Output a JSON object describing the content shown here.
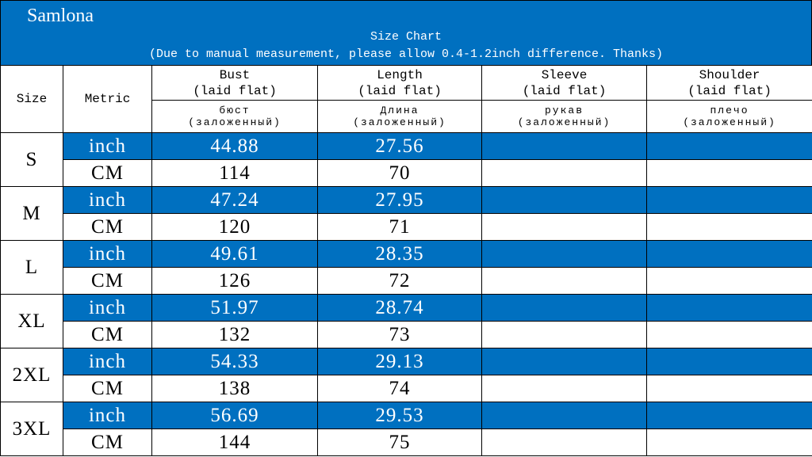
{
  "header": {
    "brand": "Samlona",
    "title": "Size Chart",
    "note": "(Due to manual measurement, please allow 0.4-1.2inch difference. Thanks)"
  },
  "table": {
    "size_label": "Size",
    "metric_label": "Metric",
    "columns": [
      {
        "name": "Bust",
        "sub": "(laid flat)",
        "ru": "бюст",
        "ru_sub": "(заложенный)"
      },
      {
        "name": "Length",
        "sub": "(laid flat)",
        "ru": "Длина",
        "ru_sub": "(заложенный)"
      },
      {
        "name": "Sleeve",
        "sub": "(laid flat)",
        "ru": "рукав",
        "ru_sub": "(заложенный)"
      },
      {
        "name": "Shoulder",
        "sub": "(laid flat)",
        "ru": "плечо",
        "ru_sub": "(заложенный)"
      }
    ],
    "sizes": [
      {
        "size": "S",
        "rows": [
          {
            "metric": "inch",
            "values": [
              "44.88",
              "27.56"
            ]
          },
          {
            "metric": "CM",
            "values": [
              "114",
              "70"
            ]
          }
        ]
      },
      {
        "size": "M",
        "rows": [
          {
            "metric": "inch",
            "values": [
              "47.24",
              "27.95"
            ]
          },
          {
            "metric": "CM",
            "values": [
              "120",
              "71"
            ]
          }
        ]
      },
      {
        "size": "L",
        "rows": [
          {
            "metric": "inch",
            "values": [
              "49.61",
              "28.35"
            ]
          },
          {
            "metric": "CM",
            "values": [
              "126",
              "72"
            ]
          }
        ]
      },
      {
        "size": "XL",
        "rows": [
          {
            "metric": "inch",
            "values": [
              "51.97",
              "28.74"
            ]
          },
          {
            "metric": "CM",
            "values": [
              "132",
              "73"
            ]
          }
        ]
      },
      {
        "size": "2XL",
        "rows": [
          {
            "metric": "inch",
            "values": [
              "54.33",
              "29.13"
            ]
          },
          {
            "metric": "CM",
            "values": [
              "138",
              "74"
            ]
          }
        ]
      },
      {
        "size": "3XL",
        "rows": [
          {
            "metric": "inch",
            "values": [
              "56.69",
              "29.53"
            ]
          },
          {
            "metric": "CM",
            "values": [
              "144",
              "75"
            ]
          }
        ]
      }
    ]
  }
}
